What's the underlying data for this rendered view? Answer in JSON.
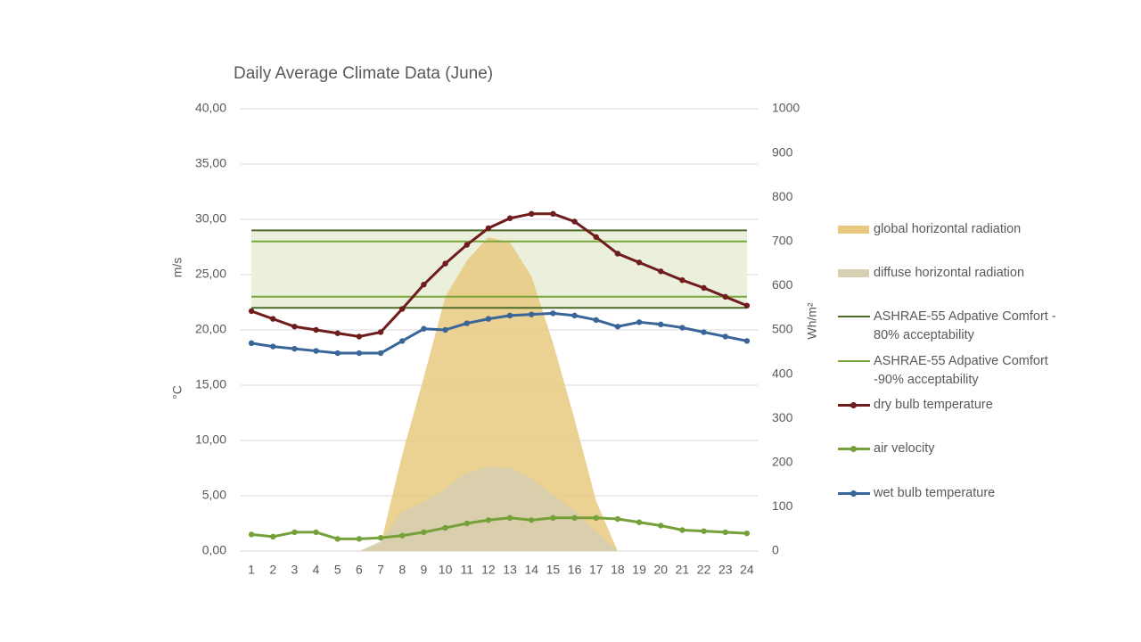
{
  "chart_data": {
    "type": "line",
    "title": "Daily Average Climate Data (June)",
    "y_label_top": "m/s",
    "y_label_bottom": "°C",
    "y2_label": "Wh/m²",
    "categories": [
      "1",
      "2",
      "3",
      "4",
      "5",
      "6",
      "7",
      "8",
      "9",
      "10",
      "11",
      "12",
      "13",
      "14",
      "15",
      "16",
      "17",
      "18",
      "19",
      "20",
      "21",
      "22",
      "23",
      "24"
    ],
    "ylim": [
      0,
      40
    ],
    "yticks": [
      {
        "value": 0,
        "label": "0,00"
      },
      {
        "value": 5,
        "label": "5,00"
      },
      {
        "value": 10,
        "label": "10,00"
      },
      {
        "value": 15,
        "label": "15,00"
      },
      {
        "value": 20,
        "label": "20,00"
      },
      {
        "value": 25,
        "label": "25,00"
      },
      {
        "value": 30,
        "label": "30,00"
      },
      {
        "value": 35,
        "label": "35,00"
      },
      {
        "value": 40,
        "label": "40,00"
      }
    ],
    "y2lim": [
      0,
      1000
    ],
    "y2ticks": [
      0,
      100,
      200,
      300,
      400,
      500,
      600,
      700,
      800,
      900,
      1000
    ],
    "grid": true,
    "comfort_bands": [
      {
        "name": "ASHRAE-55 Adpative Comfort - 80% acceptability",
        "color": "#4e6b2a",
        "fill": "#ebf0dc",
        "lower": 22,
        "upper": 29
      },
      {
        "name": "ASHRAE-55 Adpative Comfort -90% acceptability",
        "color": "#7aa63a",
        "lower": 23,
        "upper": 28
      }
    ],
    "series": [
      {
        "name": "global horizontal radiation",
        "kind": "area",
        "axis": "y2",
        "color": "#e8c97f",
        "values": [
          0,
          0,
          0,
          0,
          0,
          0,
          16,
          218,
          393,
          575,
          657,
          710,
          698,
          621,
          470,
          298,
          113,
          0,
          0,
          0,
          0,
          0,
          0,
          0
        ]
      },
      {
        "name": "diffuse horizontal radiation",
        "kind": "area",
        "axis": "y2",
        "color": "#d6cfb2",
        "values": [
          0,
          0,
          0,
          0,
          0,
          0,
          22,
          89,
          111,
          141,
          177,
          190,
          188,
          163,
          127,
          91,
          44,
          0,
          0,
          0,
          0,
          0,
          0,
          0
        ]
      },
      {
        "name": "dry bulb temperature",
        "kind": "line",
        "color": "#6e1c1c",
        "values": [
          21.7,
          21.0,
          20.3,
          20.0,
          19.7,
          19.4,
          19.8,
          21.9,
          24.1,
          26.0,
          27.7,
          29.2,
          30.1,
          30.5,
          30.5,
          29.8,
          28.4,
          26.9,
          26.1,
          25.3,
          24.5,
          23.8,
          23.0,
          22.2
        ]
      },
      {
        "name": "air velocity",
        "kind": "line",
        "color": "#76a03a",
        "values": [
          1.5,
          1.3,
          1.7,
          1.7,
          1.1,
          1.1,
          1.2,
          1.4,
          1.7,
          2.1,
          2.5,
          2.8,
          3.0,
          2.8,
          3.0,
          3.0,
          3.0,
          2.9,
          2.6,
          2.3,
          1.9,
          1.8,
          1.7,
          1.6
        ]
      },
      {
        "name": "wet bulb temperature",
        "kind": "line",
        "color": "#3a6598",
        "values": [
          18.8,
          18.5,
          18.3,
          18.1,
          17.9,
          17.9,
          17.9,
          19.0,
          20.1,
          20.0,
          20.6,
          21.0,
          21.3,
          21.4,
          21.5,
          21.3,
          20.9,
          20.3,
          20.7,
          20.5,
          20.2,
          19.8,
          19.4,
          19.0
        ]
      }
    ]
  }
}
